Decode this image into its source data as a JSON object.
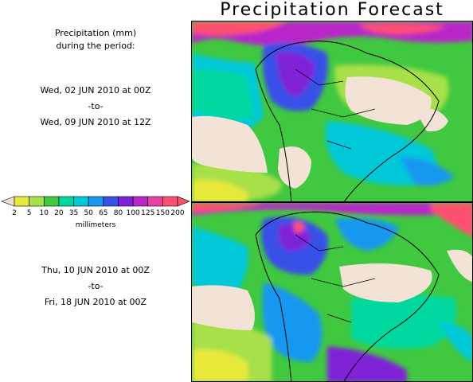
{
  "title": "Precipitation Forecast",
  "intro": {
    "line1": "Precipitation (mm)",
    "line2": "during the period:"
  },
  "periods": [
    {
      "start": "Wed, 02 JUN 2010 at 00Z",
      "separator": "-to-",
      "end": "Wed, 09 JUN 2010 at 12Z"
    },
    {
      "start": "Thu, 10 JUN 2010 at 00Z",
      "separator": "-to-",
      "end": "Fri, 18 JUN 2010 at 00Z"
    }
  ],
  "legend": {
    "unit": "millimeters",
    "ticks": [
      "2",
      "5",
      "10",
      "20",
      "35",
      "50",
      "65",
      "80",
      "100",
      "125",
      "150",
      "200"
    ],
    "colors": [
      "#e8e83a",
      "#a8e048",
      "#40c840",
      "#00d8a0",
      "#00c8d8",
      "#1898f0",
      "#3850e8",
      "#8020d8",
      "#b828c8",
      "#e840a0",
      "#ff5070"
    ],
    "below_color": "#f0e0d0",
    "above_color": "#ff5070"
  },
  "map": {
    "land_dry_color": "#f3e3d6"
  }
}
